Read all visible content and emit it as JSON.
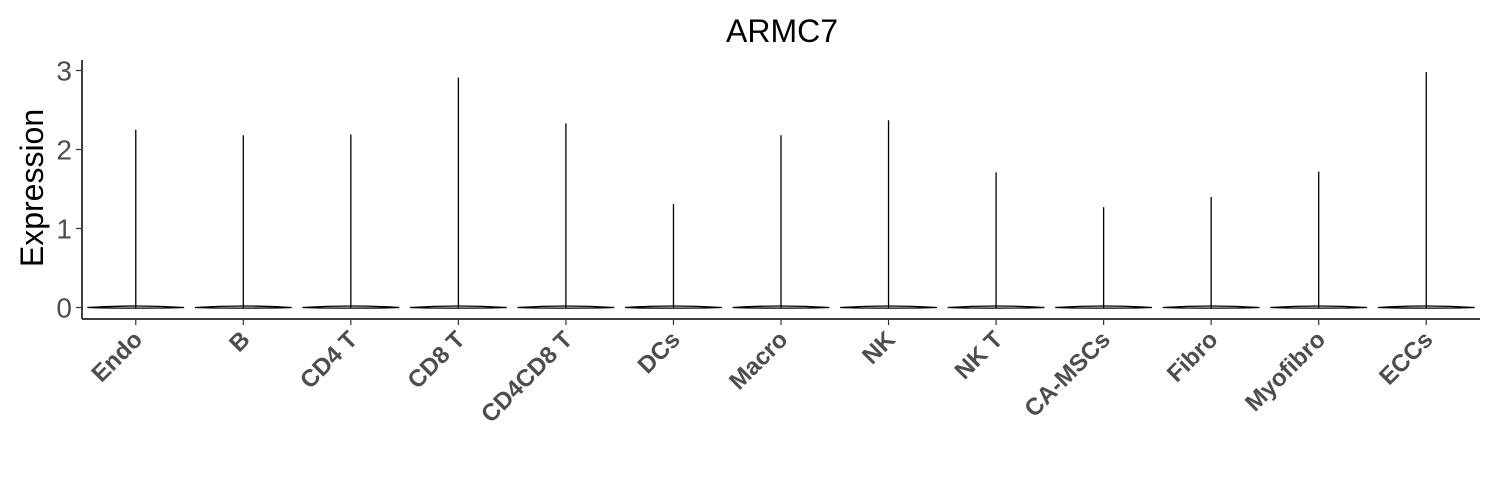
{
  "chart_data": {
    "type": "violin",
    "title": "ARMC7",
    "xlabel": "",
    "ylabel": "Expression",
    "ylim": [
      -0.15,
      3.13
    ],
    "yticks": [
      0,
      1,
      2,
      3
    ],
    "ytick_labels": [
      "0",
      "1",
      "2",
      "3"
    ],
    "grid": false,
    "legend": "none",
    "categories": [
      "Endo",
      "B",
      "CD4 T",
      "CD8 T",
      "CD4CD8 T",
      "DCs",
      "Macro",
      "NK",
      "NK T",
      "CA-MSCs",
      "Fibro",
      "Myofibro",
      "ECCs"
    ],
    "series": [
      {
        "max_values": [
          2.25,
          2.18,
          2.19,
          2.91,
          2.33,
          1.31,
          2.18,
          2.37,
          1.71,
          1.27,
          1.4,
          1.72,
          2.98
        ],
        "min_values": [
          0,
          0,
          0,
          0,
          0,
          0,
          0,
          0,
          0,
          0,
          0,
          0,
          0
        ],
        "median_values": [
          0,
          0,
          0,
          0,
          0,
          0,
          0,
          0,
          0,
          0,
          0,
          0,
          0
        ]
      }
    ],
    "colors": {
      "violin_stroke": "#000000",
      "axis": "#000000",
      "tick_label": "#4d4d4d",
      "background": "#ffffff"
    }
  }
}
